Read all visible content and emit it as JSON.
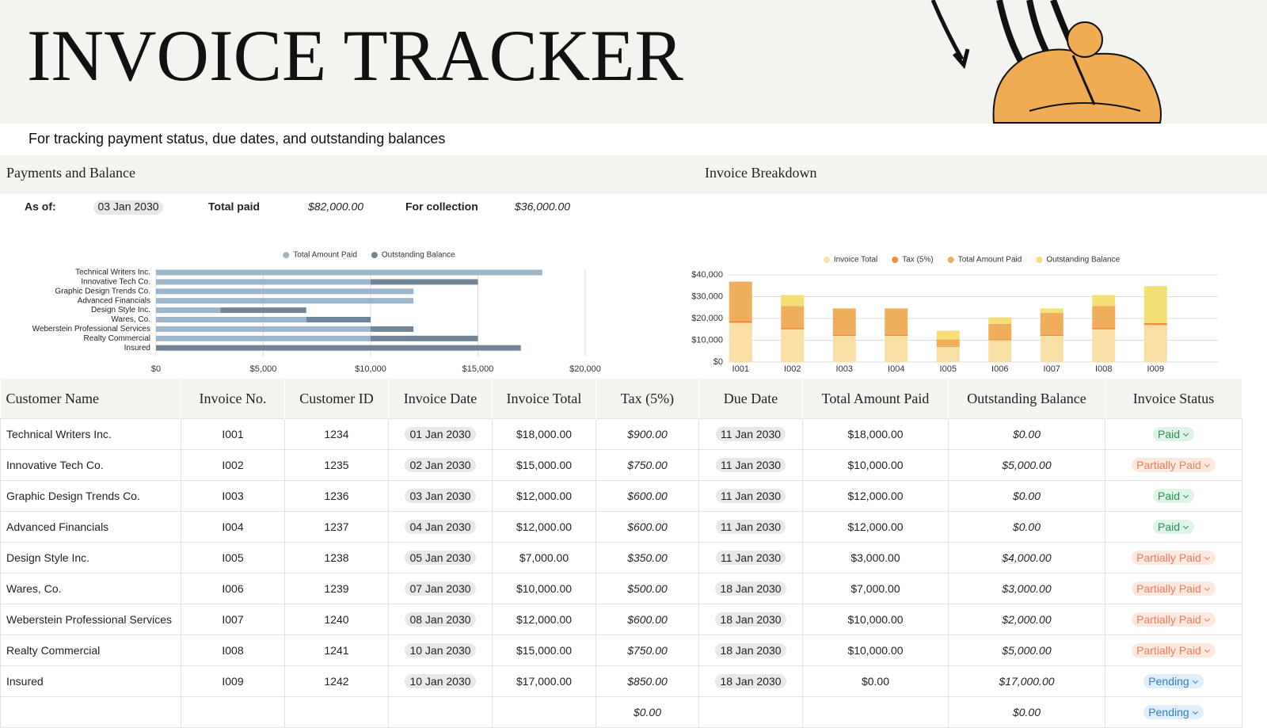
{
  "header": {
    "title": "INVOICE TRACKER",
    "subtitle": "For tracking payment status, due dates, and outstanding balances"
  },
  "panels": [
    "Payments and Balance",
    "Invoice Breakdown"
  ],
  "summary": {
    "as_of_label": "As of:",
    "as_of": "03 Jan 2030",
    "total_paid_label": "Total paid",
    "total_paid": "$82,000.00",
    "for_collection_label": "For collection",
    "for_collection": "$36,000.00"
  },
  "chart_data": [
    {
      "type": "bar",
      "horizontal": true,
      "stacked": true,
      "categories": [
        "Technical Writers Inc.",
        "Innovative Tech Co.",
        "Graphic Design Trends Co.",
        "Advanced Financials",
        "Design Style Inc.",
        "Wares, Co.",
        "Weberstein Professional Services",
        "Realty Commercial",
        "Insured"
      ],
      "series": [
        {
          "name": "Total Amount Paid",
          "color": "#9db5c9",
          "values": [
            18000,
            10000,
            12000,
            12000,
            3000,
            7000,
            10000,
            10000,
            0
          ]
        },
        {
          "name": "Outstanding Balance",
          "color": "#718597",
          "values": [
            0,
            5000,
            0,
            0,
            4000,
            3000,
            2000,
            5000,
            17000
          ]
        }
      ],
      "xlim": [
        0,
        20000
      ],
      "xticks": [
        {
          "value": 0,
          "label": "$0"
        },
        {
          "value": 5000,
          "label": "$5,000"
        },
        {
          "value": 10000,
          "label": "$10,000"
        },
        {
          "value": 15000,
          "label": "$15,000"
        },
        {
          "value": 20000,
          "label": "$20,000"
        }
      ],
      "grid": true
    },
    {
      "type": "bar",
      "horizontal": false,
      "stacked": true,
      "categories": [
        "I001",
        "I002",
        "I003",
        "I004",
        "I005",
        "I006",
        "I007",
        "I008",
        "I009"
      ],
      "series": [
        {
          "name": "Invoice Total",
          "color": "#f9dea6",
          "values": [
            18000,
            15000,
            12000,
            12000,
            7000,
            10000,
            12000,
            15000,
            17000
          ]
        },
        {
          "name": "Tax (5%)",
          "color": "#f28b3e",
          "values": [
            900,
            750,
            600,
            600,
            350,
            500,
            600,
            750,
            850
          ]
        },
        {
          "name": "Total Amount Paid",
          "color": "#efae5c",
          "values": [
            18000,
            10000,
            12000,
            12000,
            3000,
            7000,
            10000,
            10000,
            0
          ]
        },
        {
          "name": "Outstanding Balance",
          "color": "#f6df74",
          "values": [
            0,
            5000,
            0,
            0,
            4000,
            3000,
            2000,
            5000,
            17000
          ]
        }
      ],
      "ylim": [
        0,
        40000
      ],
      "yticks": [
        {
          "value": 0,
          "label": "$0"
        },
        {
          "value": 10000,
          "label": "$10,000"
        },
        {
          "value": 20000,
          "label": "$20,000"
        },
        {
          "value": 30000,
          "label": "$30,000"
        },
        {
          "value": 40000,
          "label": "$40,000"
        }
      ],
      "grid": true
    }
  ],
  "table": {
    "columns": [
      "Customer Name",
      "Invoice No.",
      "Customer ID",
      "Invoice Date",
      "Invoice Total",
      "Tax (5%)",
      "Due Date",
      "Total Amount Paid",
      "Outstanding Balance",
      "Invoice Status"
    ],
    "rows": [
      [
        "Technical Writers Inc.",
        "I001",
        "1234",
        "01 Jan 2030",
        "$18,000.00",
        "$900.00",
        "11 Jan 2030",
        "$18,000.00",
        "$0.00",
        "Paid"
      ],
      [
        "Innovative Tech Co.",
        "I002",
        "1235",
        "02 Jan 2030",
        "$15,000.00",
        "$750.00",
        "11 Jan 2030",
        "$10,000.00",
        "$5,000.00",
        "Partially Paid"
      ],
      [
        "Graphic Design Trends Co.",
        "I003",
        "1236",
        "03 Jan 2030",
        "$12,000.00",
        "$600.00",
        "11 Jan 2030",
        "$12,000.00",
        "$0.00",
        "Paid"
      ],
      [
        "Advanced Financials",
        "I004",
        "1237",
        "04 Jan 2030",
        "$12,000.00",
        "$600.00",
        "11 Jan 2030",
        "$12,000.00",
        "$0.00",
        "Paid"
      ],
      [
        "Design Style Inc.",
        "I005",
        "1238",
        "05 Jan 2030",
        "$7,000.00",
        "$350.00",
        "11 Jan 2030",
        "$3,000.00",
        "$4,000.00",
        "Partially Paid"
      ],
      [
        "Wares, Co.",
        "I006",
        "1239",
        "07 Jan 2030",
        "$10,000.00",
        "$500.00",
        "18 Jan 2030",
        "$7,000.00",
        "$3,000.00",
        "Partially Paid"
      ],
      [
        "Weberstein Professional Services",
        "I007",
        "1240",
        "08 Jan 2030",
        "$12,000.00",
        "$600.00",
        "18 Jan 2030",
        "$10,000.00",
        "$2,000.00",
        "Partially Paid"
      ],
      [
        "Realty Commercial",
        "I008",
        "1241",
        "10 Jan 2030",
        "$15,000.00",
        "$750.00",
        "18 Jan 2030",
        "$10,000.00",
        "$5,000.00",
        "Partially Paid"
      ],
      [
        "Insured",
        "I009",
        "1242",
        "10 Jan 2030",
        "$17,000.00",
        "$850.00",
        "18 Jan 2030",
        "$0.00",
        "$17,000.00",
        "Pending"
      ],
      [
        null,
        null,
        null,
        null,
        null,
        "$0.00",
        null,
        null,
        "$0.00",
        "Pending"
      ]
    ],
    "status_badges": {
      "Paid": {
        "color": "#2e8f5a",
        "bg": "#dff3e6"
      },
      "Partially Paid": {
        "color": "#e57f5c",
        "bg": "#fde8e0"
      },
      "Pending": {
        "color": "#2f7fc4",
        "bg": "#e0eefb"
      }
    }
  }
}
